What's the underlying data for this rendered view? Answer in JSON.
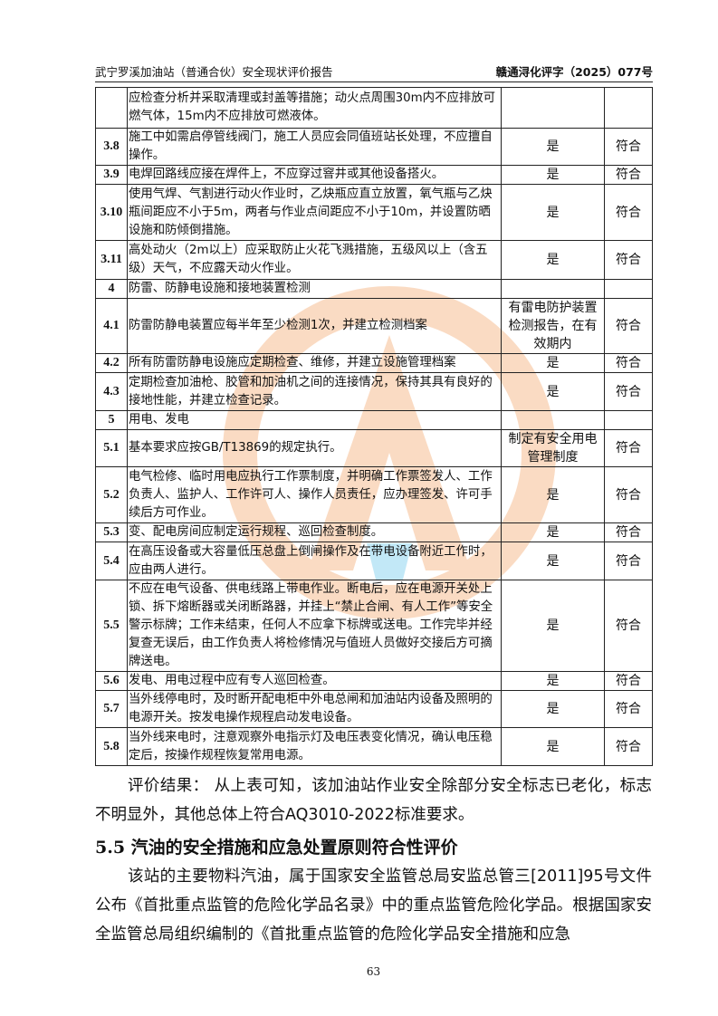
{
  "header": {
    "left": "武宁罗溪加油站（普通合伙）安全现状评价报告",
    "right": "赣通浔化评字（2025）077号"
  },
  "table": {
    "rows": [
      {
        "num": "",
        "content": "应检查分析并采取清理或封盖等措施；动火点周围30m内不应排放可燃气体，15m内不应排放可燃液体。",
        "result": "",
        "conclusion": ""
      },
      {
        "num": "3.8",
        "content": "施工中如需启停管线阀门，施工人员应会同值班站长处理，不应擅自操作。",
        "result": "是",
        "conclusion": "符合"
      },
      {
        "num": "3.9",
        "content": "电焊回路线应接在焊件上，不应穿过窨井或其他设备搭火。",
        "result": "是",
        "conclusion": "符合"
      },
      {
        "num": "3.10",
        "content": "使用气焊、气割进行动火作业时，乙炔瓶应直立放置，氧气瓶与乙炔瓶间距应不小于5m，两者与作业点间距应不小于10m，并设置防晒设施和防倾倒措施。",
        "result": "是",
        "conclusion": "符合"
      },
      {
        "num": "3.11",
        "content": "高处动火（2m以上）应采取防止火花飞溅措施，五级风以上（含五级）天气，不应露天动火作业。",
        "result": "是",
        "conclusion": "符合"
      },
      {
        "num": "4",
        "content": "防雷、防静电设施和接地装置检测",
        "result": "",
        "conclusion": ""
      },
      {
        "num": "4.1",
        "content": "防雷防静电装置应每半年至少检测1次，并建立检测档案",
        "result": "有雷电防护装置检测报告，在有效期内",
        "conclusion": "符合"
      },
      {
        "num": "4.2",
        "content": "所有防雷防静电设施应定期检查、维修，并建立设施管理档案",
        "result": "是",
        "conclusion": "符合"
      },
      {
        "num": "4.3",
        "content": "定期检查加油枪、胶管和加油机之间的连接情况，保持其具有良好的接地性能，并建立检查记录。",
        "result": "是",
        "conclusion": "符合"
      },
      {
        "num": "5",
        "content": "用电、发电",
        "result": "",
        "conclusion": ""
      },
      {
        "num": "5.1",
        "content": "基本要求应按GB/T13869的规定执行。",
        "result": "制定有安全用电管理制度",
        "conclusion": "符合"
      },
      {
        "num": "5.2",
        "content": "电气检修、临时用电应执行工作票制度，并明确工作票签发人、工作负责人、监护人、工作许可人、操作人员责任，应办理签发、许可手续后方可作业。",
        "result": "是",
        "conclusion": "符合"
      },
      {
        "num": "5.3",
        "content": "变、配电房间应制定运行规程、巡回检查制度。",
        "result": "是",
        "conclusion": "符合"
      },
      {
        "num": "5.4",
        "content": "在高压设备或大容量低压总盘上倒闸操作及在带电设备附近工作时，应由两人进行。",
        "result": "是",
        "conclusion": "符合"
      },
      {
        "num": "5.5",
        "content": "不应在电气设备、供电线路上带电作业。断电后，应在电源开关处上锁、拆下熔断器或关闭断路器，并挂上“禁止合闸、有人工作”等安全警示标牌；工作未结束，任何人不应拿下标牌或送电。工作完毕并经复查无误后，由工作负责人将检修情况与值班人员做好交接后方可摘牌送电。",
        "result": "是",
        "conclusion": "符合"
      },
      {
        "num": "5.6",
        "content": "发电、用电过程中应有专人巡回检查。",
        "result": "是",
        "conclusion": "符合"
      },
      {
        "num": "5.7",
        "content": "当外线停电时，及时断开配电柜中外电总闸和加油站内设备及照明的电源开关。按发电操作规程启动发电设备。",
        "result": "是",
        "conclusion": "符合"
      },
      {
        "num": "5.8",
        "content": "当外线来电时，注意观察外电指示灯及电压表变化情况，确认电压稳定后，按操作规程恢复常用电源。",
        "result": "是",
        "conclusion": "符合"
      }
    ]
  },
  "result_paragraph": "评价结果： 从上表可知，该加油站作业安全除部分安全标志已老化，标志不明显外，其他总体上符合AQ3010-2022标准要求。",
  "section_heading": "5.5 汽油的安全措施和应急处置原则符合性评价",
  "body_paragraph": "该站的主要物料汽油，属于国家安全监管总局安监总管三[2011]95号文件公布《首批重点监管的危险化学品名录》中的重点监管危险化学品。根据国家安全监管总局组织编制的《首批重点监管的危险化学品安全措施和应急",
  "page_number": "63",
  "watermark": {
    "text": "江西通安",
    "colors": {
      "ring": "#f08a3c",
      "text": "#e8242a",
      "accent": "#39b6e6"
    }
  }
}
